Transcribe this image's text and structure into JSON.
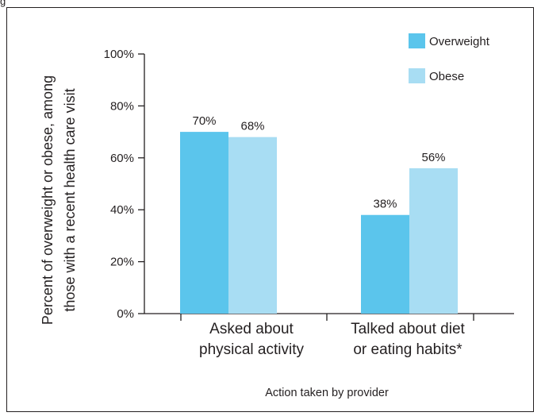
{
  "figure_label": "g",
  "chart_data": {
    "type": "bar",
    "categories": [
      [
        "Asked about",
        "physical activity"
      ],
      [
        "Talked about diet",
        "or eating habits*"
      ]
    ],
    "series": [
      {
        "name": "Overweight",
        "color": "#5bc5ec",
        "values": [
          70,
          38
        ]
      },
      {
        "name": "Obese",
        "color": "#a8ddf3",
        "values": [
          68,
          56
        ]
      }
    ],
    "data_labels": [
      [
        "70%",
        "38%"
      ],
      [
        "68%",
        "56%"
      ]
    ],
    "ylabel": [
      "Percent of overweight or obese, among",
      "those with a recent health care visit"
    ],
    "xlabel": "Action taken by provider",
    "yticks": [
      0,
      20,
      40,
      60,
      80,
      100
    ],
    "ytick_labels": [
      "0%",
      "20%",
      "40%",
      "60%",
      "80%",
      "100%"
    ],
    "ylim": [
      0,
      100
    ],
    "legend_position": "top-right",
    "grid": false
  }
}
